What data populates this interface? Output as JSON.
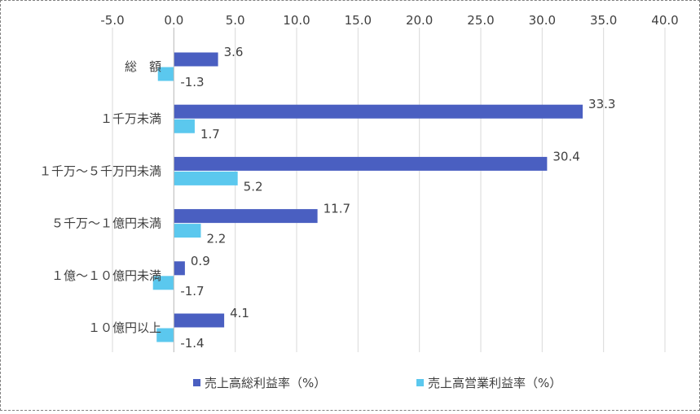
{
  "chart_data": {
    "type": "bar",
    "orientation": "horizontal",
    "categories": [
      "総　額",
      "１千万未満",
      "１千万～５千万円未満",
      "５千万～１億円未満",
      "１億～１０億円未満",
      "１０億円以上"
    ],
    "series": [
      {
        "name": "売上高総利益率（%）",
        "values": [
          3.6,
          33.3,
          30.4,
          11.7,
          0.9,
          4.1
        ],
        "color": "#4A5FC1"
      },
      {
        "name": "売上高営業利益率（%）",
        "values": [
          -1.3,
          1.7,
          5.2,
          2.2,
          -1.7,
          -1.4
        ],
        "color": "#5BC8EE"
      }
    ],
    "xlim": [
      -5,
      40
    ],
    "xticks": [
      -5,
      0,
      5,
      10,
      15,
      20,
      25,
      30,
      35,
      40
    ],
    "tick_labels": [
      "-5.0",
      "0.0",
      "5.0",
      "10.0",
      "15.0",
      "20.0",
      "25.0",
      "30.0",
      "35.0",
      "40.0"
    ],
    "axis_position": "top",
    "grid": true,
    "legend_position": "bottom",
    "title": "",
    "xlabel": "",
    "ylabel": ""
  }
}
